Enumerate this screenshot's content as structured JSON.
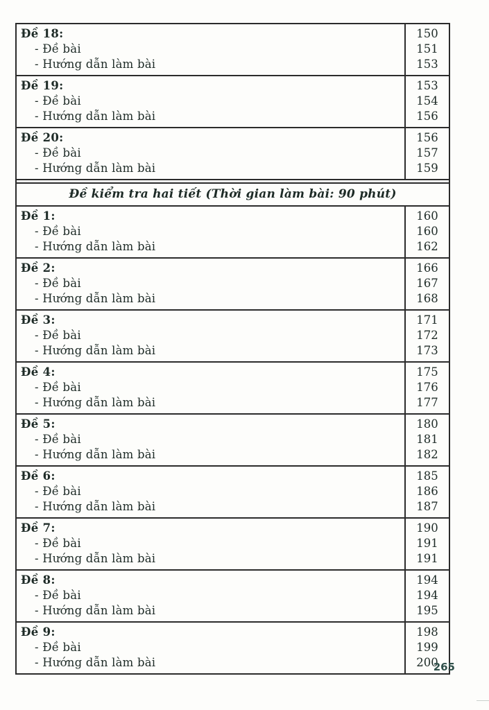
{
  "toc": {
    "groups": [
      {
        "type": "entry",
        "title": "Đề 18:",
        "title_page": "150",
        "items": [
          {
            "label": "- Đề bài",
            "page": "151"
          },
          {
            "label": "- Hướng dẫn làm bài",
            "page": "153"
          }
        ]
      },
      {
        "type": "entry",
        "title": "Đề 19:",
        "title_page": "153",
        "items": [
          {
            "label": "- Đề bài",
            "page": "154"
          },
          {
            "label": "- Hướng dẫn làm bài",
            "page": "156"
          }
        ]
      },
      {
        "type": "entry",
        "title": "Đề 20:",
        "title_page": "156",
        "items": [
          {
            "label": "- Đề bài",
            "page": "157"
          },
          {
            "label": "- Hướng dẫn làm bài",
            "page": "159"
          }
        ]
      },
      {
        "type": "section_header",
        "label": "Đề kiểm tra hai tiết (Thời gian làm bài: 90 phút)"
      },
      {
        "type": "entry",
        "title": "Đề 1:",
        "title_page": "160",
        "items": [
          {
            "label": "- Đề bài",
            "page": "160"
          },
          {
            "label": "- Hướng dẫn làm bài",
            "page": "162"
          }
        ]
      },
      {
        "type": "entry",
        "title": "Đề 2:",
        "title_page": "166",
        "items": [
          {
            "label": "- Đề bài",
            "page": "167"
          },
          {
            "label": "- Hướng dẫn làm bài",
            "page": "168"
          }
        ]
      },
      {
        "type": "entry",
        "title": "Đề 3:",
        "title_page": "171",
        "items": [
          {
            "label": "- Đề bài",
            "page": "172"
          },
          {
            "label": "- Hướng dẫn làm bài",
            "page": "173"
          }
        ]
      },
      {
        "type": "entry",
        "title": "Đề 4:",
        "title_page": "175",
        "items": [
          {
            "label": "- Đề bài",
            "page": "176"
          },
          {
            "label": "- Hướng dẫn làm bài",
            "page": "177"
          }
        ]
      },
      {
        "type": "entry",
        "title": "Đề 5:",
        "title_page": "180",
        "items": [
          {
            "label": "- Đề bài",
            "page": "181"
          },
          {
            "label": "- Hướng dẫn làm bài",
            "page": "182"
          }
        ]
      },
      {
        "type": "entry",
        "title": "Đề 6:",
        "title_page": "185",
        "items": [
          {
            "label": "- Đề bài",
            "page": "186"
          },
          {
            "label": "- Hướng dẫn làm bài",
            "page": "187"
          }
        ]
      },
      {
        "type": "entry",
        "title": "Đề 7:",
        "title_page": "190",
        "items": [
          {
            "label": "- Đề bài",
            "page": "191"
          },
          {
            "label": "- Hướng dẫn làm bài",
            "page": "191"
          }
        ]
      },
      {
        "type": "entry",
        "title": "Đề 8:",
        "title_page": "194",
        "items": [
          {
            "label": "- Đề bài",
            "page": "194"
          },
          {
            "label": "- Hướng dẫn làm bài",
            "page": "195"
          }
        ]
      },
      {
        "type": "entry",
        "title": "Đề 9:",
        "title_page": "198",
        "items": [
          {
            "label": "- Đề bài",
            "page": "199"
          },
          {
            "label": "- Hướng dẫn làm bài",
            "page": "200"
          }
        ]
      }
    ]
  },
  "footer": {
    "page_number": "265"
  }
}
